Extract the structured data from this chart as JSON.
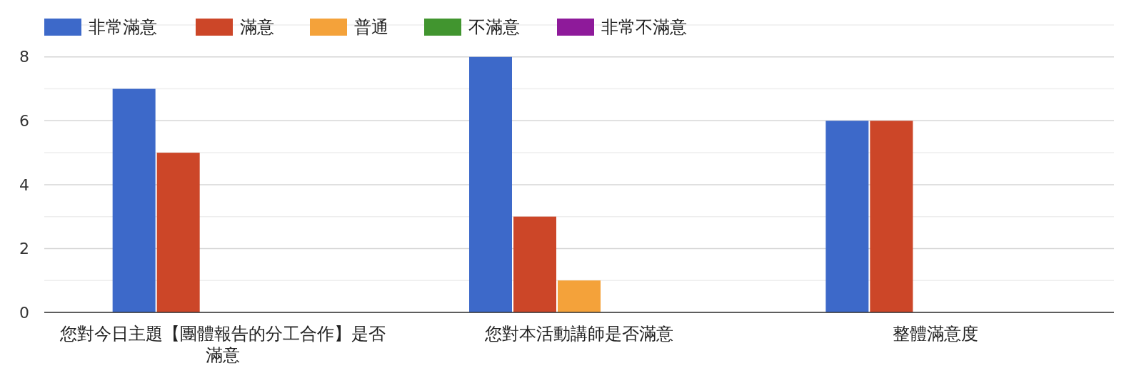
{
  "chart_data": {
    "type": "bar",
    "categories": [
      "您對今日主題【團體報告的分工合作】是否滿意",
      "您對本活動講師是否滿意",
      "整體滿意度"
    ],
    "series": [
      {
        "name": "非常滿意",
        "color": "#3d69c9",
        "values": [
          7,
          8,
          6
        ]
      },
      {
        "name": "滿意",
        "color": "#cc4628",
        "values": [
          5,
          3,
          6
        ]
      },
      {
        "name": "普通",
        "color": "#f4a23a",
        "values": [
          0,
          1,
          0
        ]
      },
      {
        "name": "不滿意",
        "color": "#41952f",
        "values": [
          0,
          0,
          0
        ]
      },
      {
        "name": "非常不滿意",
        "color": "#8e1a9a",
        "values": [
          0,
          0,
          0
        ]
      }
    ],
    "ylim": [
      0,
      9
    ],
    "yticks": [
      0,
      {
        "value": 1,
        "label": null
      },
      2,
      {
        "value": 3,
        "label": null
      },
      4,
      {
        "value": 5,
        "label": null
      },
      6,
      {
        "value": 7,
        "label": null
      },
      8,
      {
        "value": 9,
        "label": null
      }
    ],
    "grid": true,
    "legend": "top left"
  }
}
